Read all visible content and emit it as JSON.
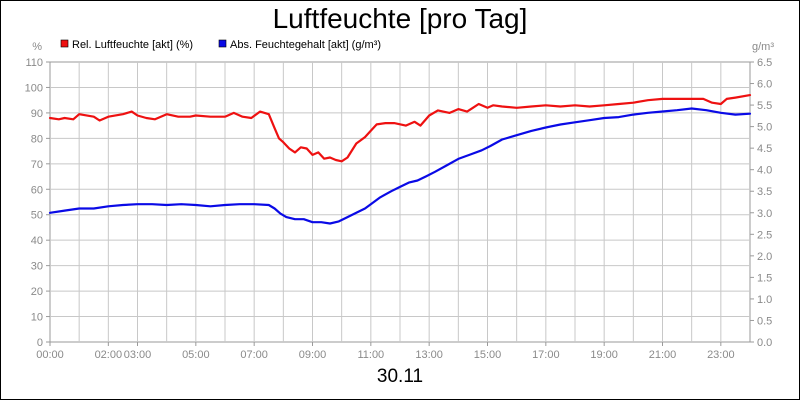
{
  "chart_data": {
    "type": "line",
    "title": "Luftfeuchte [pro Tag]",
    "date": "30.11",
    "left_unit": "%",
    "right_unit": "g/m³",
    "left_axis": {
      "min": 0,
      "max": 110,
      "step": 10,
      "ticks": [
        "0",
        "10",
        "20",
        "30",
        "40",
        "50",
        "60",
        "70",
        "80",
        "90",
        "100",
        "110"
      ]
    },
    "right_axis": {
      "min": 0,
      "max": 6.5,
      "step": 0.5,
      "ticks": [
        "0.0",
        "0.5",
        "1.0",
        "1.5",
        "2.0",
        "2.5",
        "3.0",
        "3.5",
        "4.0",
        "4.5",
        "5.0",
        "5.5",
        "6.0",
        "6.5"
      ]
    },
    "x_range": [
      0,
      24
    ],
    "x_ticks": [
      {
        "hour": 0,
        "label": "00:00"
      },
      {
        "hour": 2,
        "label": "02:00"
      },
      {
        "hour": 3,
        "label": "03:00"
      },
      {
        "hour": 5,
        "label": "05:00"
      },
      {
        "hour": 7,
        "label": "07:00"
      },
      {
        "hour": 9,
        "label": "09:00"
      },
      {
        "hour": 11,
        "label": "11:00"
      },
      {
        "hour": 13,
        "label": "13:00"
      },
      {
        "hour": 15,
        "label": "15:00"
      },
      {
        "hour": 17,
        "label": "17:00"
      },
      {
        "hour": 19,
        "label": "19:00"
      },
      {
        "hour": 21,
        "label": "21:00"
      },
      {
        "hour": 23,
        "label": "23:00"
      }
    ],
    "grid": true,
    "legend_position": "top-left",
    "series": [
      {
        "name": "Rel. Luftfeuchte [akt] (%)",
        "color": "#ee1111",
        "axis": "left",
        "points": [
          [
            0,
            88
          ],
          [
            0.3,
            87.5
          ],
          [
            0.5,
            88
          ],
          [
            0.8,
            87.5
          ],
          [
            1.0,
            89.5
          ],
          [
            1.5,
            88.5
          ],
          [
            1.7,
            87
          ],
          [
            2.0,
            88.5
          ],
          [
            2.5,
            89.5
          ],
          [
            2.8,
            90.5
          ],
          [
            3.0,
            89
          ],
          [
            3.3,
            88
          ],
          [
            3.6,
            87.5
          ],
          [
            4.0,
            89.5
          ],
          [
            4.4,
            88.5
          ],
          [
            4.8,
            88.5
          ],
          [
            5.0,
            89
          ],
          [
            5.5,
            88.5
          ],
          [
            6.0,
            88.5
          ],
          [
            6.3,
            90
          ],
          [
            6.6,
            88.5
          ],
          [
            6.9,
            88
          ],
          [
            7.2,
            90.5
          ],
          [
            7.5,
            89.5
          ],
          [
            7.7,
            84
          ],
          [
            7.85,
            80
          ],
          [
            8.0,
            78.5
          ],
          [
            8.2,
            76
          ],
          [
            8.4,
            74.5
          ],
          [
            8.6,
            76.5
          ],
          [
            8.8,
            76
          ],
          [
            9.0,
            73.5
          ],
          [
            9.2,
            74.5
          ],
          [
            9.4,
            72
          ],
          [
            9.6,
            72.5
          ],
          [
            9.8,
            71.5
          ],
          [
            10.0,
            71
          ],
          [
            10.2,
            72.5
          ],
          [
            10.5,
            78
          ],
          [
            10.8,
            80.5
          ],
          [
            11.0,
            83
          ],
          [
            11.2,
            85.5
          ],
          [
            11.5,
            86
          ],
          [
            11.8,
            86
          ],
          [
            12.2,
            85
          ],
          [
            12.5,
            86.5
          ],
          [
            12.7,
            85
          ],
          [
            13.0,
            89
          ],
          [
            13.3,
            91
          ],
          [
            13.7,
            90
          ],
          [
            14.0,
            91.5
          ],
          [
            14.3,
            90.5
          ],
          [
            14.5,
            92
          ],
          [
            14.7,
            93.5
          ],
          [
            15.0,
            92
          ],
          [
            15.2,
            93
          ],
          [
            15.5,
            92.5
          ],
          [
            16.0,
            92
          ],
          [
            16.5,
            92.5
          ],
          [
            17.0,
            93
          ],
          [
            17.5,
            92.5
          ],
          [
            18.0,
            93
          ],
          [
            18.5,
            92.5
          ],
          [
            19.0,
            93
          ],
          [
            19.5,
            93.5
          ],
          [
            20.0,
            94
          ],
          [
            20.5,
            95
          ],
          [
            21.0,
            95.5
          ],
          [
            21.5,
            95.5
          ],
          [
            22.0,
            95.5
          ],
          [
            22.4,
            95.5
          ],
          [
            22.7,
            94
          ],
          [
            23.0,
            93.5
          ],
          [
            23.2,
            95.5
          ],
          [
            23.5,
            96
          ],
          [
            24.0,
            97
          ]
        ]
      },
      {
        "name": "Abs. Feuchtegehalt [akt] (g/m³)",
        "color": "#0a0ae6",
        "axis": "right",
        "points": [
          [
            0,
            3.0
          ],
          [
            0.5,
            3.05
          ],
          [
            1.0,
            3.1
          ],
          [
            1.5,
            3.1
          ],
          [
            2.0,
            3.15
          ],
          [
            2.5,
            3.18
          ],
          [
            3.0,
            3.2
          ],
          [
            3.5,
            3.2
          ],
          [
            4.0,
            3.18
          ],
          [
            4.5,
            3.2
          ],
          [
            5.0,
            3.18
          ],
          [
            5.5,
            3.15
          ],
          [
            6.0,
            3.18
          ],
          [
            6.5,
            3.2
          ],
          [
            7.0,
            3.2
          ],
          [
            7.5,
            3.18
          ],
          [
            7.7,
            3.1
          ],
          [
            7.9,
            2.98
          ],
          [
            8.1,
            2.9
          ],
          [
            8.4,
            2.85
          ],
          [
            8.7,
            2.85
          ],
          [
            9.0,
            2.78
          ],
          [
            9.3,
            2.78
          ],
          [
            9.6,
            2.75
          ],
          [
            9.9,
            2.8
          ],
          [
            10.2,
            2.9
          ],
          [
            10.5,
            3.0
          ],
          [
            10.8,
            3.1
          ],
          [
            11.0,
            3.2
          ],
          [
            11.3,
            3.35
          ],
          [
            11.7,
            3.5
          ],
          [
            12.0,
            3.6
          ],
          [
            12.3,
            3.7
          ],
          [
            12.6,
            3.75
          ],
          [
            12.9,
            3.85
          ],
          [
            13.2,
            3.95
          ],
          [
            13.6,
            4.1
          ],
          [
            14.0,
            4.25
          ],
          [
            14.4,
            4.35
          ],
          [
            14.8,
            4.45
          ],
          [
            15.1,
            4.55
          ],
          [
            15.5,
            4.7
          ],
          [
            16.0,
            4.8
          ],
          [
            16.5,
            4.9
          ],
          [
            17.0,
            4.98
          ],
          [
            17.5,
            5.05
          ],
          [
            18.0,
            5.1
          ],
          [
            18.5,
            5.15
          ],
          [
            19.0,
            5.2
          ],
          [
            19.5,
            5.22
          ],
          [
            20.0,
            5.28
          ],
          [
            20.5,
            5.32
          ],
          [
            21.0,
            5.35
          ],
          [
            21.5,
            5.38
          ],
          [
            22.0,
            5.42
          ],
          [
            22.5,
            5.38
          ],
          [
            23.0,
            5.32
          ],
          [
            23.5,
            5.28
          ],
          [
            24.0,
            5.3
          ]
        ]
      }
    ]
  }
}
